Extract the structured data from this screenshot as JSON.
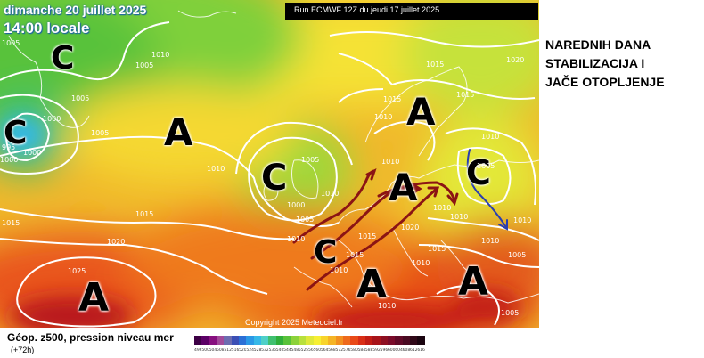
{
  "header": {
    "date_line": "dimanche 20 juillet 2025",
    "time_line": "14:00 locale",
    "run_label": "Run ECMWF 12Z du jeudi 17 juillet 2025"
  },
  "annotation": {
    "lines": [
      "NAREDNIH DANA",
      "STABILIZACIJA I",
      "JAČE OTOPLJENJE"
    ]
  },
  "pressure_centers": [
    {
      "label": "C",
      "kind": "low"
    },
    {
      "label": "C",
      "kind": "low"
    },
    {
      "label": "C",
      "kind": "low"
    },
    {
      "label": "C",
      "kind": "low"
    },
    {
      "label": "C",
      "kind": "low"
    },
    {
      "label": "A",
      "kind": "high"
    },
    {
      "label": "A",
      "kind": "high"
    },
    {
      "label": "A",
      "kind": "high"
    },
    {
      "label": "A",
      "kind": "high"
    },
    {
      "label": "A",
      "kind": "high"
    },
    {
      "label": "A",
      "kind": "high"
    }
  ],
  "isobar_labels": [
    "1005",
    "1010",
    "1005",
    "1005",
    "1000",
    "1000",
    "1005",
    "1010",
    "1015",
    "1015",
    "1010",
    "1020",
    "1025",
    "1015",
    "1015",
    "1020",
    "1010",
    "1005",
    "1000",
    "1005",
    "1010",
    "1015",
    "1010",
    "1005",
    "1010",
    "1010",
    "1010",
    "1005",
    "1010",
    "1015",
    "1015",
    "1020",
    "1010",
    "1010",
    "1005",
    "995",
    "1000",
    "1010",
    "1015",
    "1010"
  ],
  "copyright": "Copyright 2025 Meteociel.fr",
  "legend": {
    "title": "Géop. z500, pression niveau mer",
    "subtitle": "(+72h)",
    "values": [
      "496",
      "500",
      "504",
      "508",
      "512",
      "516",
      "520",
      "524",
      "528",
      "532",
      "536",
      "540",
      "544",
      "548",
      "552",
      "556",
      "560",
      "564",
      "568",
      "572",
      "576",
      "580",
      "584",
      "588",
      "592",
      "596",
      "600",
      "604",
      "608",
      "612",
      "616"
    ],
    "colors": [
      "#3d0045",
      "#5c0066",
      "#87107f",
      "#a24a9a",
      "#6c6cb0",
      "#3b4fb5",
      "#2b6fd6",
      "#2a98e6",
      "#35b8e8",
      "#4fd0c8",
      "#40c070",
      "#2fae3a",
      "#58c23a",
      "#8cd23a",
      "#b8e03c",
      "#dfe83a",
      "#f7ef34",
      "#f8d42c",
      "#f5b425",
      "#f29020",
      "#ee6a1c",
      "#e94a18",
      "#d92e16",
      "#c21d15",
      "#a8141a",
      "#8e0f22",
      "#7a0b2a",
      "#600a28",
      "#4a0a22",
      "#300818",
      "#1a0410"
    ]
  },
  "overlay": {
    "warm_arrow_color": "#8b1414",
    "cool_arrow_color": "#2a3fb0"
  }
}
